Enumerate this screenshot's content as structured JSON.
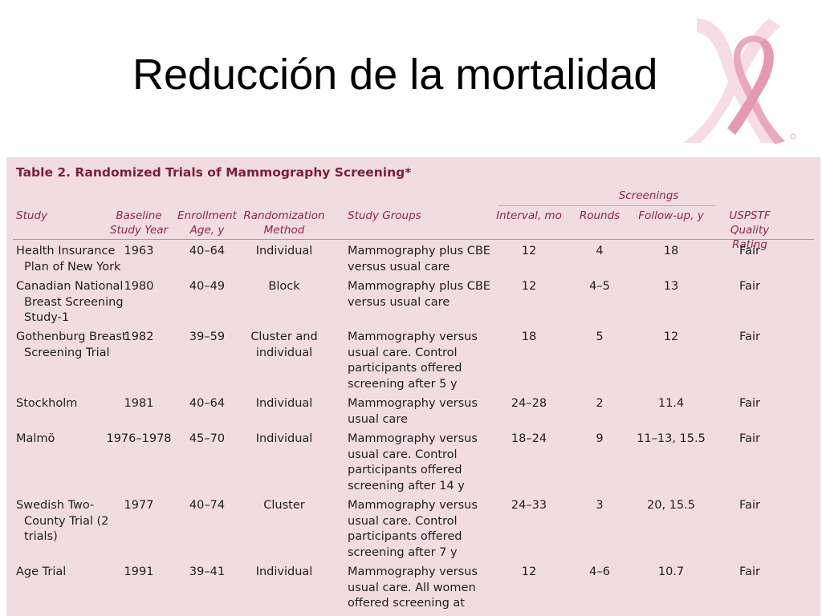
{
  "slide": {
    "title": "Reducción de la mortalidad"
  },
  "logo": {
    "icon": "pink-ribbon-icon",
    "colors": {
      "ribbon": "#e9a9bd",
      "ribbon_light": "#f6dde5"
    }
  },
  "table": {
    "caption": "Table 2. Randomized Trials of Mammography Screening*",
    "group_header": "Screenings",
    "columns": {
      "study": [
        "Study"
      ],
      "year": [
        "Baseline",
        "Study Year"
      ],
      "age": [
        "Enrollment",
        "Age, y"
      ],
      "method": [
        "Randomization",
        "Method"
      ],
      "groups": [
        "Study Groups"
      ],
      "interval": [
        "Interval, mo"
      ],
      "rounds": [
        "Rounds"
      ],
      "followup": [
        "Follow-up, y"
      ],
      "rating": [
        "USPSTF",
        "Quality Rating"
      ]
    },
    "rows": [
      {
        "study": "Health Insurance Plan of New York",
        "year": "1963",
        "age": "40–64",
        "method": "Individual",
        "groups": "Mammography plus CBE versus usual care",
        "interval": "12",
        "rounds": "4",
        "followup": "18",
        "rating": "Fair"
      },
      {
        "study": "Canadian National Breast Screening Study-1",
        "year": "1980",
        "age": "40–49",
        "method": "Block",
        "groups": "Mammography plus CBE versus usual care",
        "interval": "12",
        "rounds": "4–5",
        "followup": "13",
        "rating": "Fair"
      },
      {
        "study": "Gothenburg Breast Screening Trial",
        "year": "1982",
        "age": "39–59",
        "method": "Cluster and individual",
        "groups": "Mammography versus usual care. Control participants offered screening after 5 y",
        "interval": "18",
        "rounds": "5",
        "followup": "12",
        "rating": "Fair"
      },
      {
        "study": "Stockholm",
        "year": "1981",
        "age": "40–64",
        "method": "Individual",
        "groups": "Mammography versus usual care",
        "interval": "24–28",
        "rounds": "2",
        "followup": "11.4",
        "rating": "Fair"
      },
      {
        "study": "Malmö",
        "year": "1976–1978",
        "age": "45–70",
        "method": "Individual",
        "groups": "Mammography versus usual care. Control participants offered screening after 14 y",
        "interval": "18–24",
        "rounds": "9",
        "followup": "11–13, 15.5",
        "rating": "Fair"
      },
      {
        "study": "Swedish Two-County Trial (2 trials)",
        "year": "1977",
        "age": "40–74",
        "method": "Cluster",
        "groups": "Mammography versus usual care. Control participants offered screening after 7 y",
        "interval": "24–33",
        "rounds": "3",
        "followup": "20, 15.5",
        "rating": "Fair"
      },
      {
        "study": "Age Trial",
        "year": "1991",
        "age": "39–41",
        "method": "Individual",
        "groups": "Mammography versus usual care. All women offered screening at",
        "interval": "12",
        "rounds": "4–6",
        "followup": "10.7",
        "rating": "Fair"
      }
    ]
  }
}
